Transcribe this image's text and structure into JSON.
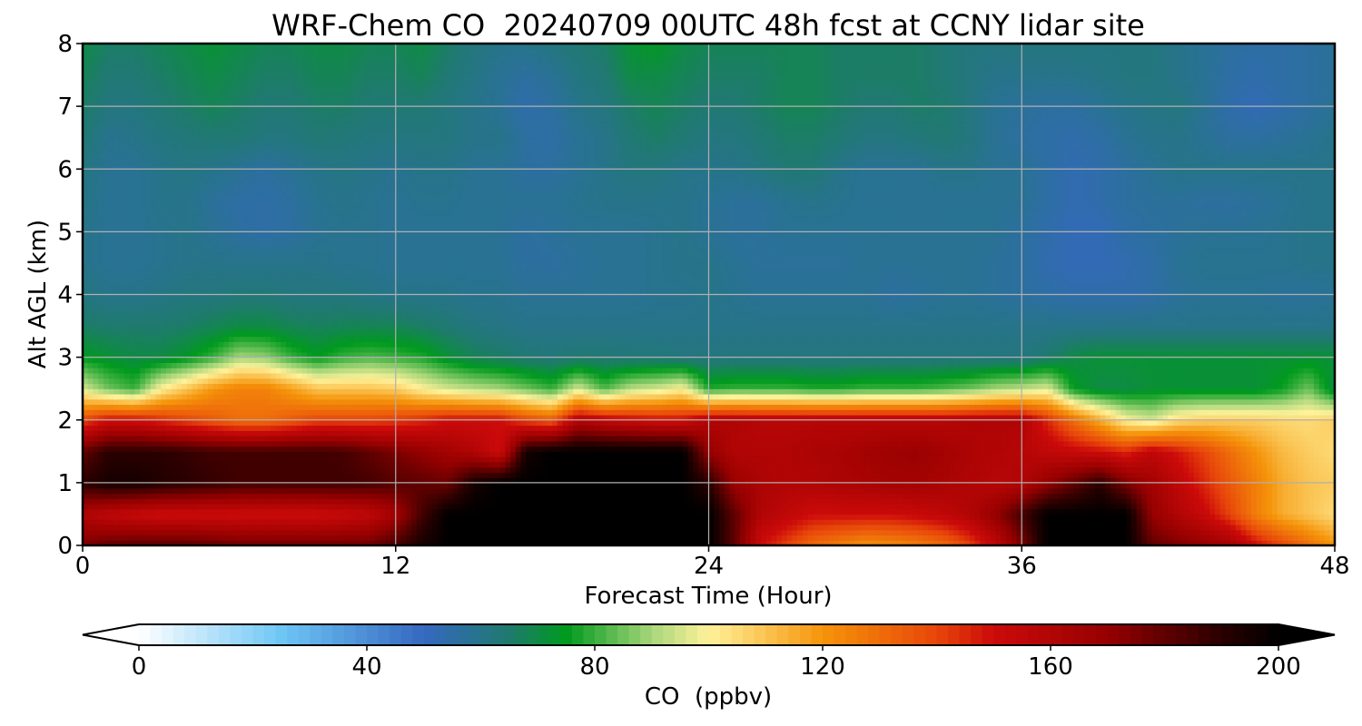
{
  "chart_data": {
    "type": "heatmap",
    "title": "WRF-Chem CO  20240709 00UTC 48h fcst at CCNY lidar site",
    "xlabel": "Forecast Time (Hour)",
    "ylabel": "Alt AGL (km)",
    "xlim": [
      0,
      48
    ],
    "ylim": [
      0,
      8
    ],
    "xticks": [
      0,
      12,
      24,
      36,
      48
    ],
    "yticks": [
      0,
      1,
      2,
      3,
      4,
      5,
      6,
      7,
      8
    ],
    "grid": true,
    "colorbar": {
      "label": "CO  (ppbv)",
      "range": [
        0,
        200
      ],
      "ticks": [
        0,
        40,
        80,
        120,
        160,
        200
      ],
      "extend": "both",
      "stops": [
        {
          "value": 0,
          "color": "#ffffff"
        },
        {
          "value": 25,
          "color": "#6ec6f5"
        },
        {
          "value": 50,
          "color": "#3568c0"
        },
        {
          "value": 65,
          "color": "#1f7a6e"
        },
        {
          "value": 75,
          "color": "#009a1e"
        },
        {
          "value": 90,
          "color": "#a8d67a"
        },
        {
          "value": 100,
          "color": "#fff29a"
        },
        {
          "value": 120,
          "color": "#f5940a"
        },
        {
          "value": 140,
          "color": "#e8460a"
        },
        {
          "value": 150,
          "color": "#cc0a0a"
        },
        {
          "value": 170,
          "color": "#960000"
        },
        {
          "value": 190,
          "color": "#2a0000"
        },
        {
          "value": 200,
          "color": "#000000"
        }
      ]
    },
    "x": [
      0,
      1,
      2,
      3,
      4,
      5,
      6,
      7,
      8,
      9,
      10,
      11,
      12,
      13,
      14,
      15,
      16,
      17,
      18,
      19,
      20,
      21,
      22,
      23,
      24,
      25,
      26,
      27,
      28,
      29,
      30,
      31,
      32,
      33,
      34,
      35,
      36,
      37,
      38,
      39,
      40,
      41,
      42,
      43,
      44,
      45,
      46,
      47,
      48
    ],
    "y": [
      0,
      0.5,
      1,
      1.5,
      2,
      2.5,
      3,
      3.5,
      4,
      4.5,
      5,
      5.5,
      6,
      6.5,
      7,
      7.5,
      8
    ],
    "z": [
      [
        175,
        180,
        182,
        182,
        182,
        180,
        178,
        178,
        178,
        178,
        178,
        178,
        185,
        195,
        200,
        200,
        200,
        200,
        200,
        200,
        200,
        200,
        200,
        200,
        200,
        180,
        150,
        140,
        130,
        125,
        120,
        122,
        125,
        130,
        140,
        155,
        175,
        200,
        200,
        200,
        200,
        180,
        175,
        170,
        165,
        150,
        140,
        130,
        120
      ],
      [
        160,
        155,
        152,
        150,
        150,
        150,
        150,
        150,
        150,
        150,
        152,
        155,
        165,
        185,
        200,
        200,
        200,
        200,
        200,
        200,
        200,
        200,
        200,
        200,
        200,
        180,
        160,
        155,
        150,
        150,
        150,
        150,
        152,
        155,
        160,
        170,
        185,
        200,
        200,
        200,
        200,
        170,
        160,
        152,
        140,
        125,
        115,
        110,
        105
      ],
      [
        190,
        195,
        195,
        192,
        190,
        188,
        186,
        186,
        186,
        186,
        186,
        185,
        182,
        180,
        178,
        195,
        200,
        200,
        200,
        200,
        200,
        200,
        200,
        200,
        190,
        168,
        162,
        160,
        160,
        162,
        163,
        165,
        165,
        163,
        160,
        158,
        160,
        170,
        180,
        190,
        175,
        165,
        155,
        145,
        135,
        125,
        115,
        110,
        108
      ],
      [
        180,
        190,
        190,
        190,
        188,
        186,
        186,
        186,
        186,
        186,
        185,
        180,
        175,
        170,
        165,
        160,
        150,
        195,
        200,
        200,
        200,
        200,
        200,
        200,
        170,
        160,
        160,
        160,
        162,
        163,
        165,
        167,
        168,
        165,
        162,
        160,
        158,
        155,
        152,
        150,
        145,
        155,
        148,
        140,
        130,
        120,
        112,
        108,
        105
      ],
      [
        140,
        150,
        150,
        145,
        140,
        135,
        130,
        130,
        135,
        140,
        140,
        140,
        142,
        145,
        150,
        150,
        150,
        140,
        135,
        160,
        155,
        152,
        150,
        150,
        160,
        160,
        158,
        158,
        158,
        158,
        158,
        158,
        158,
        158,
        160,
        160,
        160,
        145,
        130,
        115,
        100,
        95,
        105,
        108,
        108,
        108,
        106,
        105,
        108
      ],
      [
        95,
        85,
        80,
        100,
        110,
        120,
        125,
        125,
        118,
        110,
        110,
        110,
        108,
        100,
        95,
        92,
        90,
        85,
        80,
        95,
        82,
        92,
        95,
        100,
        78,
        80,
        80,
        80,
        78,
        78,
        80,
        80,
        80,
        82,
        85,
        90,
        92,
        96,
        75,
        70,
        70,
        72,
        72,
        72,
        72,
        72,
        76,
        85,
        70
      ],
      [
        75,
        72,
        70,
        70,
        74,
        80,
        90,
        88,
        80,
        75,
        80,
        82,
        80,
        78,
        72,
        68,
        66,
        64,
        63,
        64,
        64,
        63,
        63,
        62,
        62,
        62,
        62,
        62,
        62,
        62,
        62,
        62,
        62,
        62,
        62,
        62,
        62,
        65,
        70,
        72,
        72,
        72,
        72,
        72,
        72,
        72,
        72,
        72,
        72
      ],
      [
        66,
        65,
        65,
        65,
        66,
        68,
        70,
        70,
        68,
        67,
        68,
        68,
        68,
        66,
        64,
        62,
        61,
        60,
        60,
        60,
        60,
        60,
        60,
        60,
        60,
        60,
        60,
        60,
        60,
        60,
        60,
        60,
        60,
        60,
        60,
        60,
        60,
        60,
        60,
        60,
        60,
        60,
        60,
        60,
        60,
        60,
        60,
        60,
        60
      ],
      [
        62,
        60,
        60,
        61,
        62,
        62,
        63,
        63,
        62,
        62,
        62,
        61,
        60,
        60,
        60,
        59,
        59,
        58,
        58,
        58,
        58,
        58,
        59,
        59,
        60,
        59,
        58,
        58,
        58,
        58,
        58,
        56,
        57,
        58,
        58,
        57,
        56,
        55,
        54,
        54,
        54,
        55,
        57,
        58,
        58,
        58,
        57,
        57,
        58
      ],
      [
        60,
        58,
        58,
        59,
        60,
        60,
        60,
        60,
        60,
        60,
        59,
        59,
        58,
        58,
        58,
        58,
        58,
        56,
        56,
        57,
        58,
        58,
        59,
        60,
        60,
        58,
        57,
        57,
        57,
        57,
        58,
        58,
        58,
        58,
        58,
        57,
        56,
        53,
        52,
        52,
        53,
        55,
        58,
        59,
        59,
        59,
        59,
        60,
        60
      ],
      [
        60,
        58,
        58,
        59,
        60,
        58,
        56,
        55,
        56,
        58,
        59,
        59,
        58,
        58,
        58,
        58,
        58,
        56,
        57,
        58,
        58,
        58,
        59,
        60,
        58,
        57,
        57,
        58,
        58,
        58,
        58,
        58,
        58,
        58,
        58,
        58,
        56,
        54,
        52,
        52,
        55,
        56,
        57,
        58,
        58,
        58,
        59,
        60,
        60
      ],
      [
        61,
        58,
        58,
        60,
        60,
        57,
        55,
        55,
        56,
        59,
        60,
        59,
        58,
        59,
        59,
        58,
        58,
        58,
        58,
        59,
        60,
        60,
        60,
        60,
        58,
        57,
        57,
        59,
        60,
        59,
        58,
        58,
        58,
        58,
        58,
        58,
        58,
        55,
        53,
        54,
        56,
        57,
        57,
        56,
        56,
        57,
        58,
        60,
        60
      ],
      [
        62,
        58,
        58,
        60,
        61,
        60,
        58,
        56,
        58,
        60,
        61,
        60,
        59,
        60,
        60,
        58,
        58,
        56,
        56,
        58,
        60,
        62,
        62,
        60,
        60,
        60,
        62,
        64,
        64,
        60,
        58,
        58,
        58,
        60,
        60,
        58,
        58,
        55,
        53,
        54,
        56,
        58,
        60,
        60,
        60,
        60,
        60,
        60,
        60
      ],
      [
        64,
        59,
        60,
        62,
        63,
        64,
        64,
        62,
        62,
        64,
        63,
        62,
        62,
        62,
        62,
        60,
        60,
        56,
        55,
        58,
        60,
        64,
        66,
        64,
        62,
        62,
        64,
        66,
        66,
        64,
        62,
        62,
        63,
        64,
        62,
        58,
        56,
        55,
        54,
        55,
        58,
        60,
        60,
        58,
        56,
        56,
        57,
        58,
        60
      ],
      [
        66,
        62,
        62,
        64,
        66,
        68,
        66,
        64,
        64,
        66,
        66,
        64,
        64,
        64,
        62,
        60,
        58,
        54,
        56,
        60,
        62,
        66,
        68,
        66,
        64,
        64,
        66,
        68,
        68,
        66,
        64,
        64,
        66,
        65,
        62,
        58,
        57,
        56,
        56,
        58,
        60,
        61,
        62,
        58,
        54,
        52,
        54,
        56,
        58
      ],
      [
        68,
        64,
        64,
        66,
        68,
        70,
        68,
        66,
        66,
        68,
        68,
        66,
        66,
        68,
        64,
        61,
        58,
        56,
        58,
        62,
        64,
        70,
        70,
        68,
        66,
        66,
        66,
        68,
        68,
        66,
        66,
        66,
        66,
        64,
        62,
        60,
        60,
        60,
        60,
        61,
        62,
        62,
        60,
        58,
        55,
        54,
        55,
        56,
        57
      ],
      [
        70,
        66,
        66,
        68,
        70,
        72,
        70,
        68,
        68,
        70,
        70,
        68,
        68,
        70,
        66,
        62,
        60,
        60,
        62,
        64,
        66,
        72,
        74,
        70,
        68,
        68,
        68,
        68,
        68,
        66,
        66,
        66,
        66,
        64,
        62,
        62,
        62,
        62,
        62,
        62,
        62,
        62,
        60,
        58,
        56,
        55,
        55,
        56,
        58
      ]
    ]
  }
}
